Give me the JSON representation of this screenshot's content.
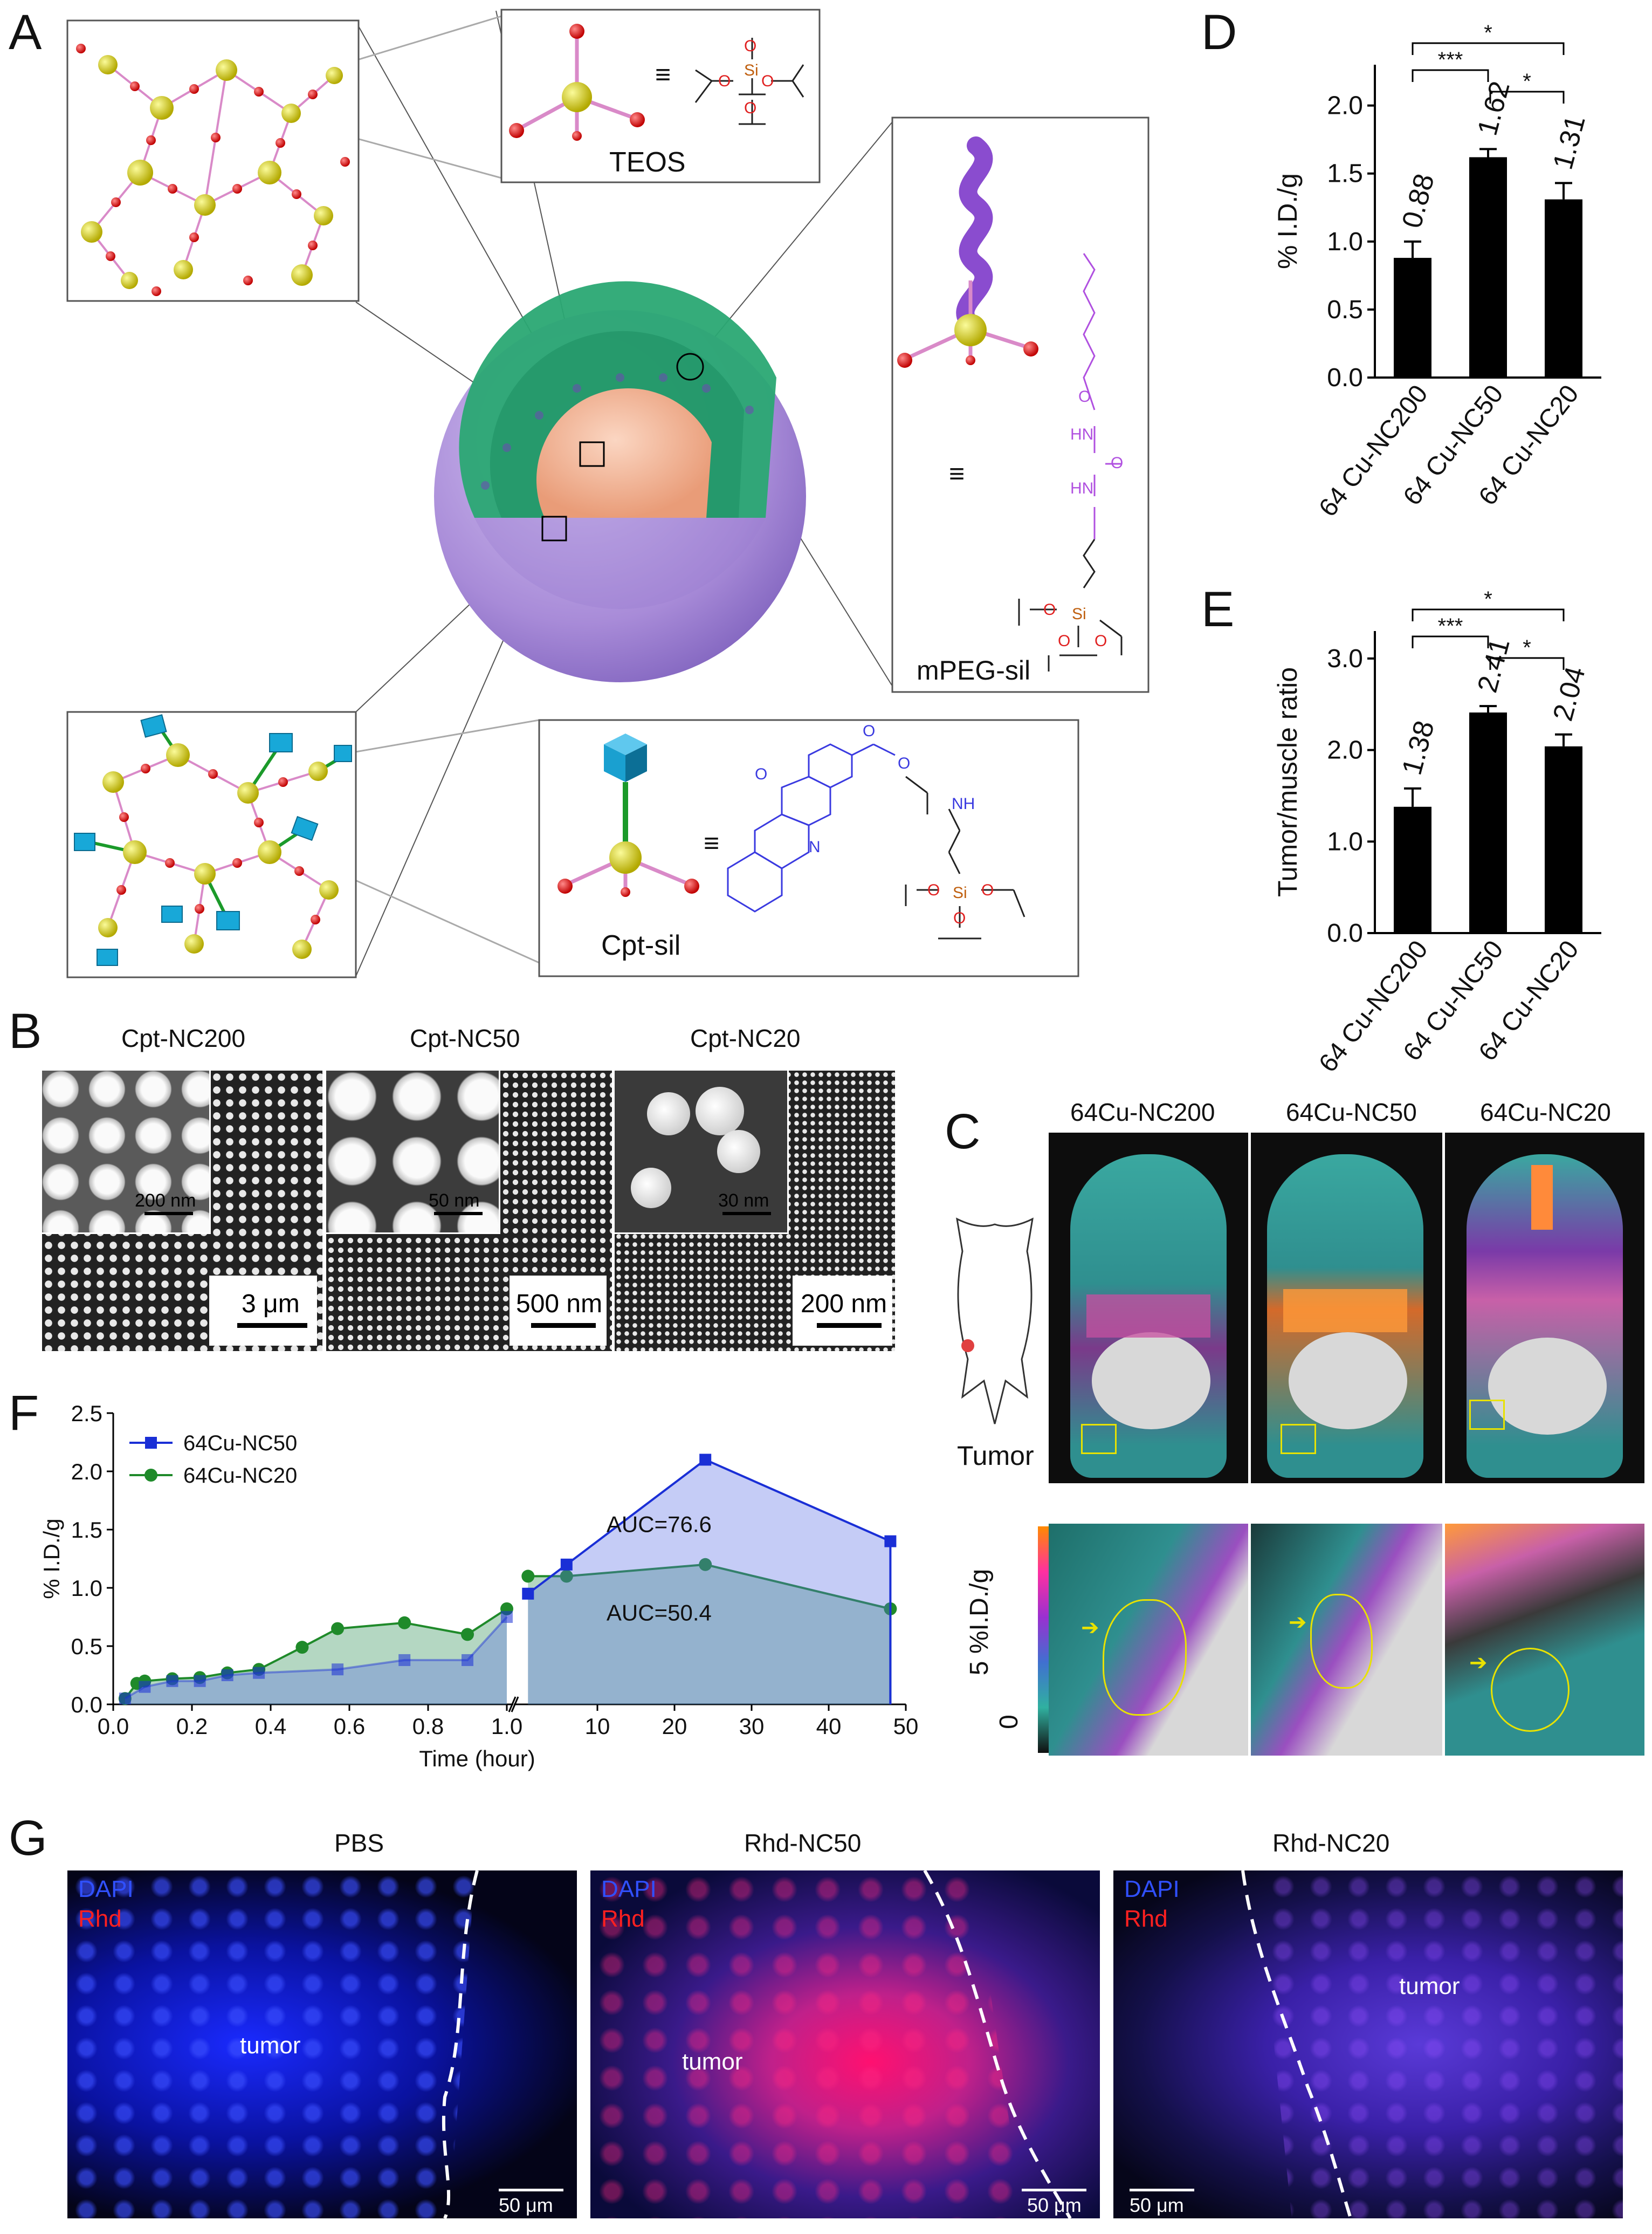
{
  "panels": {
    "A": "A",
    "B": "B",
    "C": "C",
    "D": "D",
    "E": "E",
    "F": "F",
    "G": "G"
  },
  "panelA": {
    "teos_label": "TEOS",
    "mpeg_label": "mPEG-sil",
    "cpt_label": "Cpt-sil",
    "equiv": "≡",
    "atoms": {
      "si": "Si",
      "o": "O",
      "n": "N",
      "hn": "HN",
      "nh": "NH"
    }
  },
  "panelB": {
    "titles": [
      "Cpt-NC200",
      "Cpt-NC50",
      "Cpt-NC20"
    ],
    "inset_scale": [
      "200 nm",
      "50 nm",
      "30 nm"
    ],
    "main_scale": [
      "3 μm",
      "500 nm",
      "200 nm"
    ]
  },
  "panelC": {
    "titles": [
      "64Cu-NC200",
      "64Cu-NC50",
      "64Cu-NC20"
    ],
    "tumor_label": "Tumor",
    "colorbar_max": "5 %I.D./g",
    "colorbar_min": "0"
  },
  "panelG": {
    "titles": [
      "PBS",
      "Rhd-NC50",
      "Rhd-NC20"
    ],
    "dapi": "DAPI",
    "rhd": "Rhd",
    "tumor": "tumor",
    "scale": "50 μm"
  },
  "colors": {
    "bar": "#000000",
    "nc50": "#1a2fd6",
    "nc20": "#1f8a2a",
    "shell": "#b49be0",
    "core": "#f0b89a",
    "silica_layer": "#2aa873"
  },
  "chart_data": [
    {
      "id": "D",
      "type": "bar",
      "categories": [
        "64Cu-NC200",
        "64Cu-NC50",
        "64Cu-NC20"
      ],
      "values": [
        0.88,
        1.62,
        1.31
      ],
      "errors": [
        0.12,
        0.06,
        0.12
      ],
      "data_labels": [
        "0.88",
        "1.62",
        "1.31"
      ],
      "ylabel": "% I.D./g",
      "ylim": [
        0,
        2.3
      ],
      "yticks": [
        "0.0",
        "0.5",
        "1.0",
        "1.5",
        "2.0"
      ],
      "significance": [
        {
          "pair": [
            0,
            1
          ],
          "label": "***"
        },
        {
          "pair": [
            1,
            2
          ],
          "label": "*"
        },
        {
          "pair": [
            0,
            2
          ],
          "label": "*"
        }
      ]
    },
    {
      "id": "E",
      "type": "bar",
      "categories": [
        "64Cu-NC200",
        "64Cu-NC50",
        "64Cu-NC20"
      ],
      "values": [
        1.38,
        2.41,
        2.04
      ],
      "errors": [
        0.2,
        0.07,
        0.13
      ],
      "data_labels": [
        "1.38",
        "2.41",
        "2.04"
      ],
      "ylabel": "Tumor/muscle ratio",
      "ylim": [
        0,
        3.3
      ],
      "yticks": [
        "0.0",
        "1.0",
        "2.0",
        "3.0"
      ],
      "significance": [
        {
          "pair": [
            0,
            1
          ],
          "label": "***"
        },
        {
          "pair": [
            1,
            2
          ],
          "label": "*"
        },
        {
          "pair": [
            0,
            2
          ],
          "label": "*"
        }
      ]
    },
    {
      "id": "F",
      "type": "area",
      "xlabel": "Time (hour)",
      "ylabel": "% I.D./g",
      "ylim": [
        0,
        2.5
      ],
      "yticks": [
        "0.0",
        "0.5",
        "1.0",
        "1.5",
        "2.0",
        "2.5"
      ],
      "xticks_left": [
        "0.0",
        "0.2",
        "0.4",
        "0.6",
        "0.8",
        "1.0"
      ],
      "xticks_right": [
        "10",
        "20",
        "30",
        "40",
        "50"
      ],
      "series": [
        {
          "name": "64Cu-NC50",
          "early": {
            "x": [
              0.03,
              0.08,
              0.15,
              0.22,
              0.29,
              0.37,
              0.57,
              0.74,
              0.9,
              1.0
            ],
            "y": [
              0.05,
              0.15,
              0.2,
              0.2,
              0.25,
              0.27,
              0.3,
              0.38,
              0.38,
              0.75
            ]
          },
          "late": {
            "x": [
              1,
              6,
              24,
              48
            ],
            "y": [
              0.95,
              1.2,
              2.1,
              1.4
            ]
          },
          "auc_label": "AUC=76.6"
        },
        {
          "name": "64Cu-NC20",
          "early": {
            "x": [
              0.03,
              0.06,
              0.08,
              0.15,
              0.22,
              0.29,
              0.37,
              0.48,
              0.57,
              0.74,
              0.9,
              1.0
            ],
            "y": [
              0.05,
              0.18,
              0.2,
              0.22,
              0.23,
              0.27,
              0.3,
              0.49,
              0.65,
              0.7,
              0.6,
              0.82
            ]
          },
          "late": {
            "x": [
              1,
              6,
              24,
              48
            ],
            "y": [
              1.1,
              1.1,
              1.2,
              0.82
            ]
          },
          "auc_label": "AUC=50.4"
        }
      ]
    }
  ]
}
